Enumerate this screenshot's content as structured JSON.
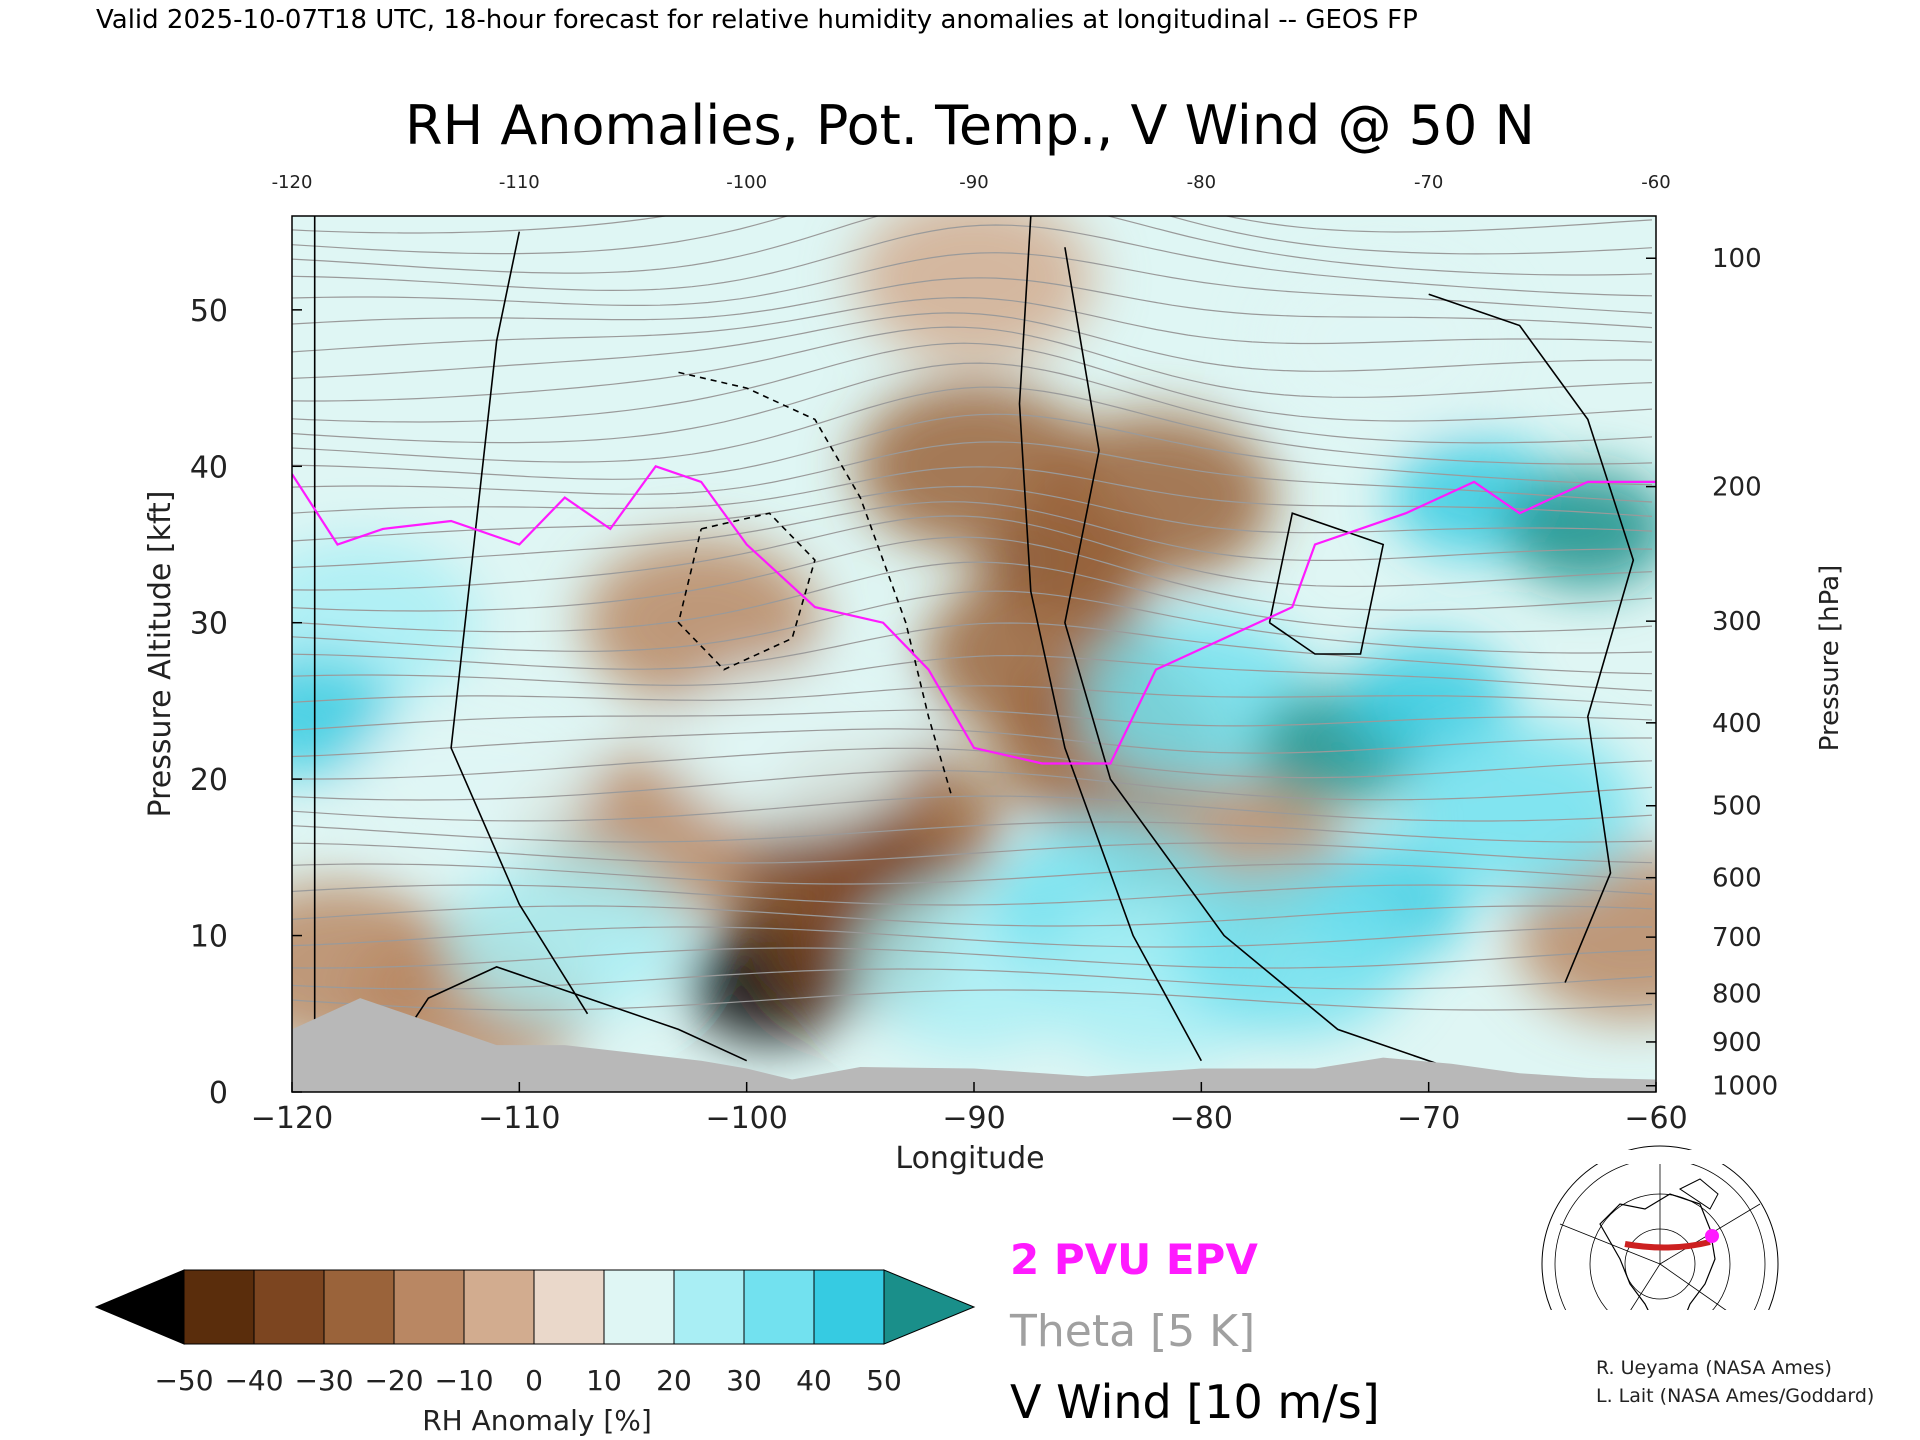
{
  "header": "Valid 2025-10-07T18 UTC, 18-hour forecast for relative humidity anomalies at longitudinal -- GEOS FP",
  "chart_data": {
    "type": "heatmap",
    "title": "RH Anomalies, Pot. Temp., V Wind @ 50 N",
    "xlabel": "Longitude",
    "ylabel_left": "Pressure Altitude [kft]",
    "ylabel_right": "Pressure [hPa]",
    "xlim": [
      -120,
      -60
    ],
    "ylim": [
      0,
      56
    ],
    "x_ticks": [
      -120,
      -110,
      -100,
      -90,
      -80,
      -70,
      -60
    ],
    "x_tick_labels": [
      "−120",
      "−110",
      "−100",
      "−90",
      "−80",
      "−70",
      "−60"
    ],
    "top_tick_labels": [
      "-120",
      "-110",
      "-100",
      "-90",
      "-80",
      "-70",
      "-60"
    ],
    "y_ticks": [
      0,
      10,
      20,
      30,
      40,
      50
    ],
    "y_tick_labels": [
      "0",
      "10",
      "20",
      "30",
      "40",
      "50"
    ],
    "pressure_ticks": [
      {
        "hpa": 1000,
        "kft": 0.4
      },
      {
        "hpa": 900,
        "kft": 3.2
      },
      {
        "hpa": 800,
        "kft": 6.3
      },
      {
        "hpa": 700,
        "kft": 9.9
      },
      {
        "hpa": 600,
        "kft": 13.7
      },
      {
        "hpa": 500,
        "kft": 18.3
      },
      {
        "hpa": 400,
        "kft": 23.6
      },
      {
        "hpa": 300,
        "kft": 30.1
      },
      {
        "hpa": 200,
        "kft": 38.7
      },
      {
        "hpa": 100,
        "kft": 53.3
      }
    ],
    "pressure_labels": [
      "1000",
      "900",
      "800",
      "700",
      "600",
      "500",
      "400",
      "300",
      "200",
      "100"
    ],
    "colorbar": {
      "label": "RH Anomaly [%]",
      "ticks": [
        "−50",
        "−40",
        "−30",
        "−20",
        "−10",
        "0",
        "10",
        "20",
        "30",
        "40",
        "50"
      ],
      "colors": [
        "#2c1506",
        "#5a2d0c",
        "#7c4520",
        "#9a633a",
        "#b98763",
        "#d2ac8f",
        "#ead8ca",
        "#dff6f4",
        "#a9eef4",
        "#72e1ef",
        "#36cbe2",
        "#12a6c6"
      ],
      "under_color": "#000000",
      "over_color": "#1a8f8a"
    },
    "legend": [
      {
        "label": "2 PVU EPV",
        "color": "#ff1aff"
      },
      {
        "label": "Theta [5 K]",
        "color": "#a0a0a0"
      },
      {
        "label": "V Wind [10 m/s]",
        "color": "#000000"
      }
    ],
    "terrain_color": "#b8b8b8",
    "anomaly_regions": [
      {
        "lon": -86,
        "kft": 34,
        "rh": -38
      },
      {
        "lon": -90,
        "kft": 40,
        "rh": -30
      },
      {
        "lon": -82,
        "kft": 38,
        "rh": -25
      },
      {
        "lon": -87,
        "kft": 28,
        "rh": -30
      },
      {
        "lon": -84,
        "kft": 22,
        "rh": -22
      },
      {
        "lon": -79,
        "kft": 15,
        "rh": -20
      },
      {
        "lon": -94,
        "kft": 17,
        "rh": -25
      },
      {
        "lon": -96,
        "kft": 13,
        "rh": -35
      },
      {
        "lon": -99,
        "kft": 7,
        "rh": -55
      },
      {
        "lon": -95,
        "kft": 9,
        "rh": -40
      },
      {
        "lon": -102,
        "kft": 30,
        "rh": -15
      },
      {
        "lon": -105,
        "kft": 16,
        "rh": -15
      },
      {
        "lon": -112,
        "kft": 6,
        "rh": -15
      },
      {
        "lon": -118,
        "kft": 8,
        "rh": -12
      },
      {
        "lon": -61,
        "kft": 10,
        "rh": -18
      },
      {
        "lon": -90,
        "kft": 52,
        "rh": -5
      },
      {
        "lon": -117,
        "kft": 30,
        "rh": 20
      },
      {
        "lon": -119,
        "kft": 24,
        "rh": 40
      },
      {
        "lon": -112,
        "kft": 20,
        "rh": 15
      },
      {
        "lon": -108,
        "kft": 10,
        "rh": 20
      },
      {
        "lon": -98,
        "kft": 22,
        "rh": 10
      },
      {
        "lon": -90,
        "kft": 8,
        "rh": 25
      },
      {
        "lon": -84,
        "kft": 12,
        "rh": 30
      },
      {
        "lon": -82,
        "kft": 7,
        "rh": 28
      },
      {
        "lon": -80,
        "kft": 25,
        "rh": 30
      },
      {
        "lon": -74,
        "kft": 22,
        "rh": 55
      },
      {
        "lon": -70,
        "kft": 25,
        "rh": 40
      },
      {
        "lon": -68,
        "kft": 38,
        "rh": 45
      },
      {
        "lon": -63,
        "kft": 36,
        "rh": 50
      },
      {
        "lon": -72,
        "kft": 12,
        "rh": 40
      },
      {
        "lon": -76,
        "kft": 9,
        "rh": 30
      },
      {
        "lon": -66,
        "kft": 18,
        "rh": 30
      },
      {
        "lon": -72,
        "kft": 48,
        "rh": 10
      }
    ]
  },
  "map_inset": {
    "section_color": "#cc2020",
    "marker_color": "#ff1aff"
  },
  "credits": [
    "R. Ueyama (NASA Ames)",
    "L. Lait (NASA Ames/Goddard)"
  ]
}
